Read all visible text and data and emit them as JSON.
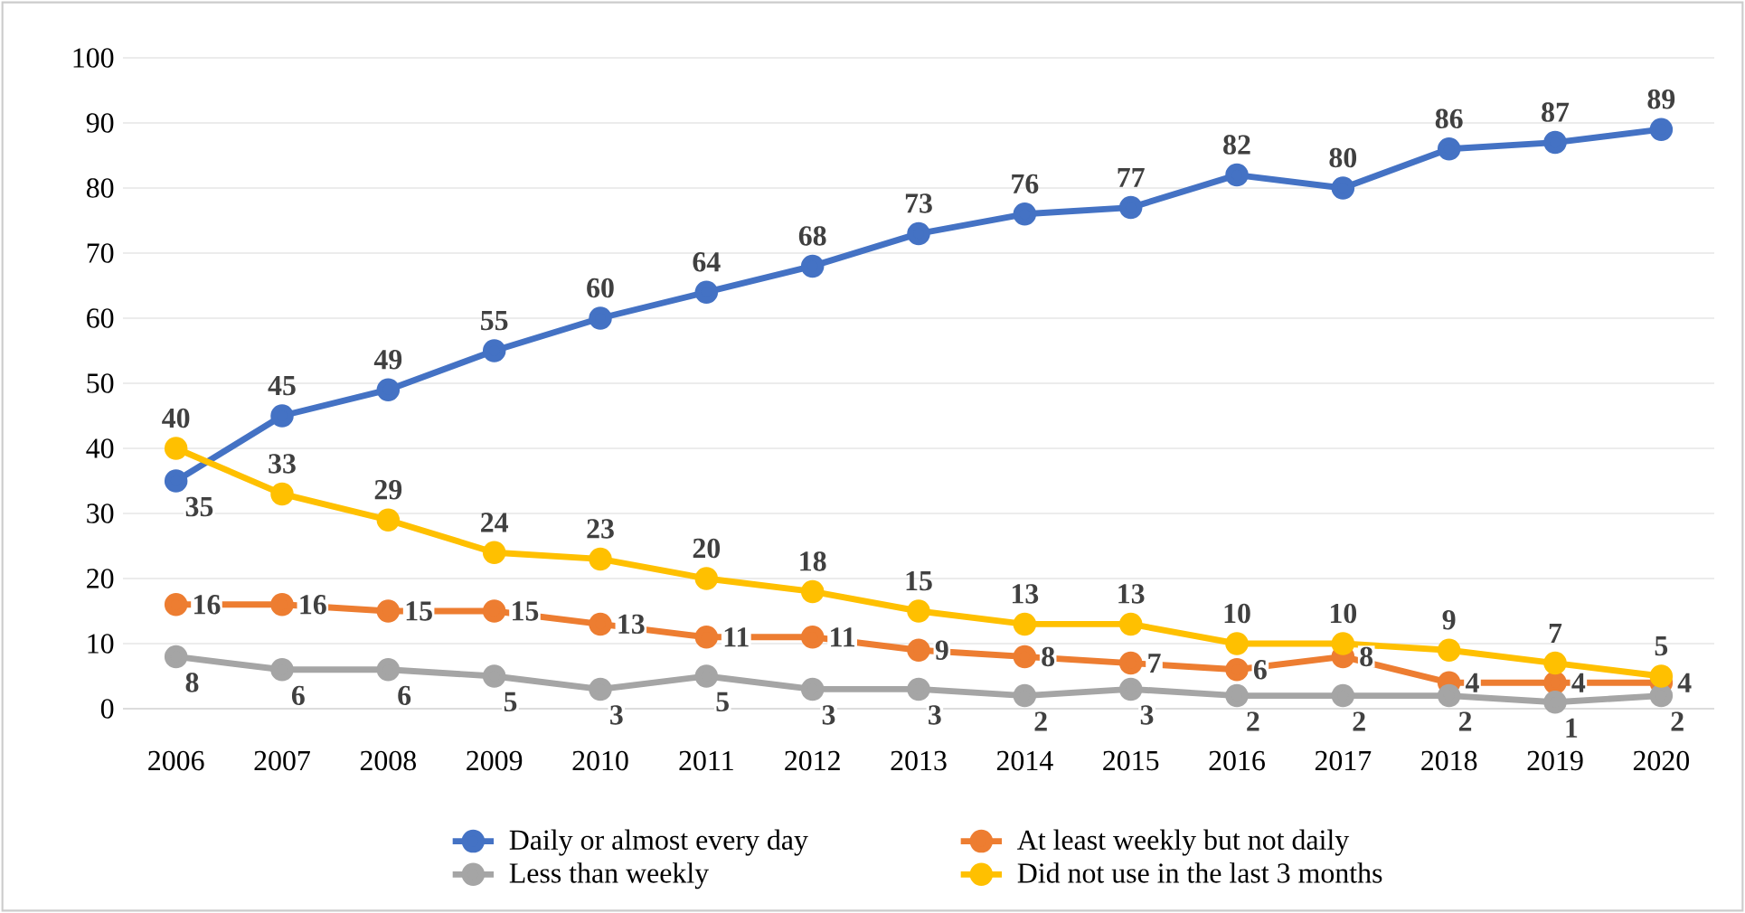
{
  "chart_data": {
    "type": "line",
    "categories": [
      "2006",
      "2007",
      "2008",
      "2009",
      "2010",
      "2011",
      "2012",
      "2013",
      "2014",
      "2015",
      "2016",
      "2017",
      "2018",
      "2019",
      "2020"
    ],
    "series": [
      {
        "name": "Daily or almost every day",
        "color": "#4472c4",
        "values": [
          35,
          45,
          49,
          55,
          60,
          64,
          68,
          73,
          76,
          77,
          82,
          80,
          86,
          87,
          89
        ]
      },
      {
        "name": "At least weekly but not daily",
        "color": "#ed7d31",
        "values": [
          16,
          16,
          15,
          15,
          13,
          11,
          11,
          9,
          8,
          7,
          6,
          8,
          4,
          4,
          4
        ]
      },
      {
        "name": "Less than weekly",
        "color": "#a5a5a5",
        "values": [
          8,
          6,
          6,
          5,
          3,
          5,
          3,
          3,
          2,
          3,
          2,
          2,
          2,
          1,
          2
        ]
      },
      {
        "name": "Did not use in the last 3 months",
        "color": "#ffc000",
        "values": [
          40,
          33,
          29,
          24,
          23,
          20,
          18,
          15,
          13,
          13,
          10,
          10,
          9,
          7,
          5
        ]
      }
    ],
    "ylim": [
      0,
      100
    ],
    "yticks": [
      0,
      10,
      20,
      30,
      40,
      50,
      60,
      70,
      80,
      90,
      100
    ],
    "grid": "y",
    "legend": "bottom",
    "marker": "circle",
    "line_style": "solid",
    "data_labels": true
  }
}
